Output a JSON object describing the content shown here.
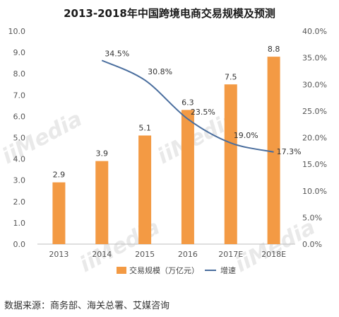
{
  "chart_data": {
    "type": "bar",
    "title": "2013-2018年中国跨境电商交易规模及预测",
    "categories": [
      "2013",
      "2014",
      "2015",
      "2016",
      "2017E",
      "2018E"
    ],
    "series": [
      {
        "name": "交易规模（万亿元）",
        "type": "bar",
        "axis": "left",
        "color": "#F39A44",
        "values": [
          2.9,
          3.9,
          5.1,
          6.3,
          7.5,
          8.8
        ],
        "labels": [
          "2.9",
          "3.9",
          "5.1",
          "6.3",
          "7.5",
          "8.8"
        ]
      },
      {
        "name": "增速",
        "type": "line",
        "axis": "right",
        "color": "#4A6E9E",
        "x": [
          "2014",
          "2015",
          "2016",
          "2017E",
          "2018E"
        ],
        "values": [
          34.5,
          30.8,
          23.5,
          19.0,
          17.3
        ],
        "labels": [
          "34.5%",
          "30.8%",
          "23.5%",
          "19.0%",
          "17.3%"
        ]
      }
    ],
    "y_left": {
      "range": [
        0,
        10
      ],
      "ticks": [
        "0.0",
        "1.0",
        "2.0",
        "3.0",
        "4.0",
        "5.0",
        "6.0",
        "7.0",
        "8.0",
        "9.0",
        "10.0"
      ]
    },
    "y_right": {
      "range": [
        0,
        40
      ],
      "ticks": [
        "0.0%",
        "5.0%",
        "10.0%",
        "15.0%",
        "20.0%",
        "25.0%",
        "30.0%",
        "35.0%",
        "40.0%"
      ]
    },
    "grid": false,
    "legend_position": "bottom"
  },
  "source_note": "数据来源：商务部、海关总署、艾媒咨询",
  "watermark": "iiMedia"
}
